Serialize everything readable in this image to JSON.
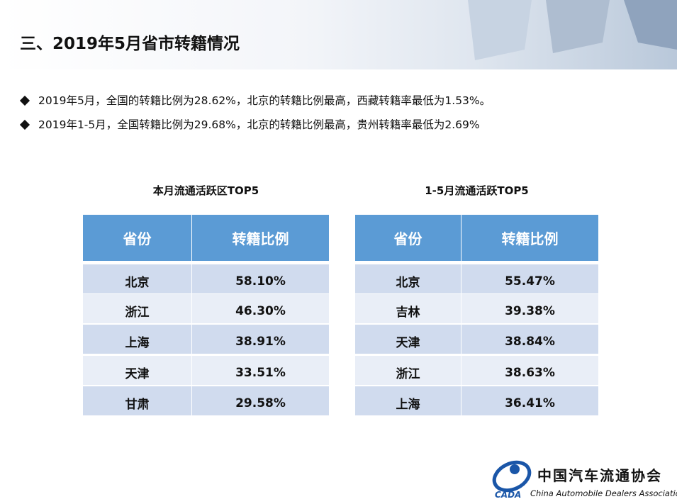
{
  "header": {
    "title": "三、2019年5月省市转籍情况"
  },
  "bullets": [
    "2019年5月，全国的转籍比例为28.62%，北京的转籍比例最高，西藏转籍率最低为1.53%。",
    "2019年1-5月，全国转籍比例为29.68%，北京的转籍比例最高，贵州转籍率最低为2.69%"
  ],
  "tables": [
    {
      "title": "本月流通活跃区TOP5",
      "headers": [
        "省份",
        "转籍比例"
      ],
      "rows": [
        [
          "北京",
          "58.10%"
        ],
        [
          "浙江",
          "46.30%"
        ],
        [
          "上海",
          "38.91%"
        ],
        [
          "天津",
          "33.51%"
        ],
        [
          "甘肃",
          "29.58%"
        ]
      ]
    },
    {
      "title": "1-5月流通活跃TOP5",
      "headers": [
        "省份",
        "转籍比例"
      ],
      "rows": [
        [
          "北京",
          "55.47%"
        ],
        [
          "吉林",
          "39.38%"
        ],
        [
          "天津",
          "38.84%"
        ],
        [
          "浙江",
          "38.63%"
        ],
        [
          "上海",
          "36.41%"
        ]
      ]
    }
  ],
  "logo": {
    "name": "中国汽车流通协会",
    "english": "China Automobile Dealers Association",
    "abbr": "CADA"
  }
}
